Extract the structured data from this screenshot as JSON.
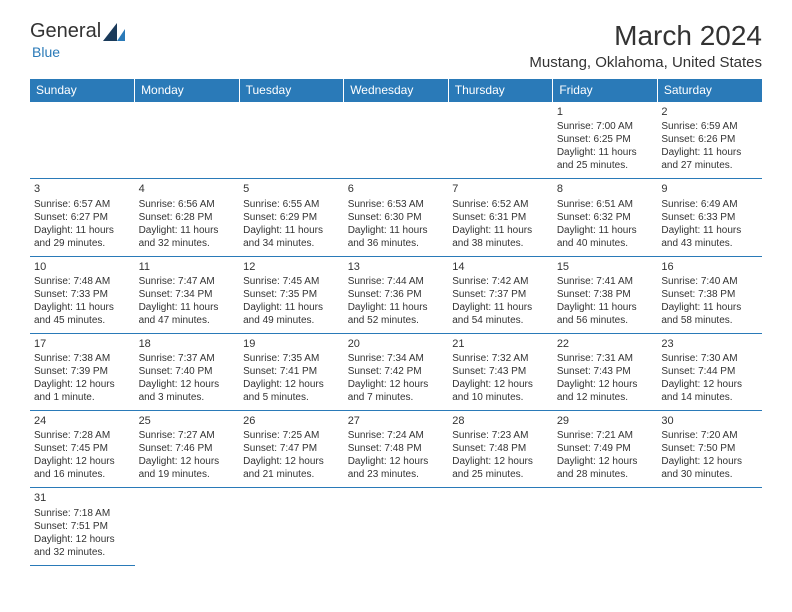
{
  "logo": {
    "general": "Genera",
    "l": "l",
    "blue": "Blue"
  },
  "title": "March 2024",
  "location": "Mustang, Oklahoma, United States",
  "colors": {
    "header_bg": "#2a7ab8",
    "header_text": "#ffffff",
    "cell_border": "#2a7ab8",
    "text": "#333333",
    "background": "#ffffff"
  },
  "days": [
    "Sunday",
    "Monday",
    "Tuesday",
    "Wednesday",
    "Thursday",
    "Friday",
    "Saturday"
  ],
  "weeks": [
    [
      null,
      null,
      null,
      null,
      null,
      {
        "n": "1",
        "sr": "Sunrise: 7:00 AM",
        "ss": "Sunset: 6:25 PM",
        "dl1": "Daylight: 11 hours",
        "dl2": "and 25 minutes."
      },
      {
        "n": "2",
        "sr": "Sunrise: 6:59 AM",
        "ss": "Sunset: 6:26 PM",
        "dl1": "Daylight: 11 hours",
        "dl2": "and 27 minutes."
      }
    ],
    [
      {
        "n": "3",
        "sr": "Sunrise: 6:57 AM",
        "ss": "Sunset: 6:27 PM",
        "dl1": "Daylight: 11 hours",
        "dl2": "and 29 minutes."
      },
      {
        "n": "4",
        "sr": "Sunrise: 6:56 AM",
        "ss": "Sunset: 6:28 PM",
        "dl1": "Daylight: 11 hours",
        "dl2": "and 32 minutes."
      },
      {
        "n": "5",
        "sr": "Sunrise: 6:55 AM",
        "ss": "Sunset: 6:29 PM",
        "dl1": "Daylight: 11 hours",
        "dl2": "and 34 minutes."
      },
      {
        "n": "6",
        "sr": "Sunrise: 6:53 AM",
        "ss": "Sunset: 6:30 PM",
        "dl1": "Daylight: 11 hours",
        "dl2": "and 36 minutes."
      },
      {
        "n": "7",
        "sr": "Sunrise: 6:52 AM",
        "ss": "Sunset: 6:31 PM",
        "dl1": "Daylight: 11 hours",
        "dl2": "and 38 minutes."
      },
      {
        "n": "8",
        "sr": "Sunrise: 6:51 AM",
        "ss": "Sunset: 6:32 PM",
        "dl1": "Daylight: 11 hours",
        "dl2": "and 40 minutes."
      },
      {
        "n": "9",
        "sr": "Sunrise: 6:49 AM",
        "ss": "Sunset: 6:33 PM",
        "dl1": "Daylight: 11 hours",
        "dl2": "and 43 minutes."
      }
    ],
    [
      {
        "n": "10",
        "sr": "Sunrise: 7:48 AM",
        "ss": "Sunset: 7:33 PM",
        "dl1": "Daylight: 11 hours",
        "dl2": "and 45 minutes."
      },
      {
        "n": "11",
        "sr": "Sunrise: 7:47 AM",
        "ss": "Sunset: 7:34 PM",
        "dl1": "Daylight: 11 hours",
        "dl2": "and 47 minutes."
      },
      {
        "n": "12",
        "sr": "Sunrise: 7:45 AM",
        "ss": "Sunset: 7:35 PM",
        "dl1": "Daylight: 11 hours",
        "dl2": "and 49 minutes."
      },
      {
        "n": "13",
        "sr": "Sunrise: 7:44 AM",
        "ss": "Sunset: 7:36 PM",
        "dl1": "Daylight: 11 hours",
        "dl2": "and 52 minutes."
      },
      {
        "n": "14",
        "sr": "Sunrise: 7:42 AM",
        "ss": "Sunset: 7:37 PM",
        "dl1": "Daylight: 11 hours",
        "dl2": "and 54 minutes."
      },
      {
        "n": "15",
        "sr": "Sunrise: 7:41 AM",
        "ss": "Sunset: 7:38 PM",
        "dl1": "Daylight: 11 hours",
        "dl2": "and 56 minutes."
      },
      {
        "n": "16",
        "sr": "Sunrise: 7:40 AM",
        "ss": "Sunset: 7:38 PM",
        "dl1": "Daylight: 11 hours",
        "dl2": "and 58 minutes."
      }
    ],
    [
      {
        "n": "17",
        "sr": "Sunrise: 7:38 AM",
        "ss": "Sunset: 7:39 PM",
        "dl1": "Daylight: 12 hours",
        "dl2": "and 1 minute."
      },
      {
        "n": "18",
        "sr": "Sunrise: 7:37 AM",
        "ss": "Sunset: 7:40 PM",
        "dl1": "Daylight: 12 hours",
        "dl2": "and 3 minutes."
      },
      {
        "n": "19",
        "sr": "Sunrise: 7:35 AM",
        "ss": "Sunset: 7:41 PM",
        "dl1": "Daylight: 12 hours",
        "dl2": "and 5 minutes."
      },
      {
        "n": "20",
        "sr": "Sunrise: 7:34 AM",
        "ss": "Sunset: 7:42 PM",
        "dl1": "Daylight: 12 hours",
        "dl2": "and 7 minutes."
      },
      {
        "n": "21",
        "sr": "Sunrise: 7:32 AM",
        "ss": "Sunset: 7:43 PM",
        "dl1": "Daylight: 12 hours",
        "dl2": "and 10 minutes."
      },
      {
        "n": "22",
        "sr": "Sunrise: 7:31 AM",
        "ss": "Sunset: 7:43 PM",
        "dl1": "Daylight: 12 hours",
        "dl2": "and 12 minutes."
      },
      {
        "n": "23",
        "sr": "Sunrise: 7:30 AM",
        "ss": "Sunset: 7:44 PM",
        "dl1": "Daylight: 12 hours",
        "dl2": "and 14 minutes."
      }
    ],
    [
      {
        "n": "24",
        "sr": "Sunrise: 7:28 AM",
        "ss": "Sunset: 7:45 PM",
        "dl1": "Daylight: 12 hours",
        "dl2": "and 16 minutes."
      },
      {
        "n": "25",
        "sr": "Sunrise: 7:27 AM",
        "ss": "Sunset: 7:46 PM",
        "dl1": "Daylight: 12 hours",
        "dl2": "and 19 minutes."
      },
      {
        "n": "26",
        "sr": "Sunrise: 7:25 AM",
        "ss": "Sunset: 7:47 PM",
        "dl1": "Daylight: 12 hours",
        "dl2": "and 21 minutes."
      },
      {
        "n": "27",
        "sr": "Sunrise: 7:24 AM",
        "ss": "Sunset: 7:48 PM",
        "dl1": "Daylight: 12 hours",
        "dl2": "and 23 minutes."
      },
      {
        "n": "28",
        "sr": "Sunrise: 7:23 AM",
        "ss": "Sunset: 7:48 PM",
        "dl1": "Daylight: 12 hours",
        "dl2": "and 25 minutes."
      },
      {
        "n": "29",
        "sr": "Sunrise: 7:21 AM",
        "ss": "Sunset: 7:49 PM",
        "dl1": "Daylight: 12 hours",
        "dl2": "and 28 minutes."
      },
      {
        "n": "30",
        "sr": "Sunrise: 7:20 AM",
        "ss": "Sunset: 7:50 PM",
        "dl1": "Daylight: 12 hours",
        "dl2": "and 30 minutes."
      }
    ],
    [
      {
        "n": "31",
        "sr": "Sunrise: 7:18 AM",
        "ss": "Sunset: 7:51 PM",
        "dl1": "Daylight: 12 hours",
        "dl2": "and 32 minutes."
      },
      null,
      null,
      null,
      null,
      null,
      null
    ]
  ]
}
